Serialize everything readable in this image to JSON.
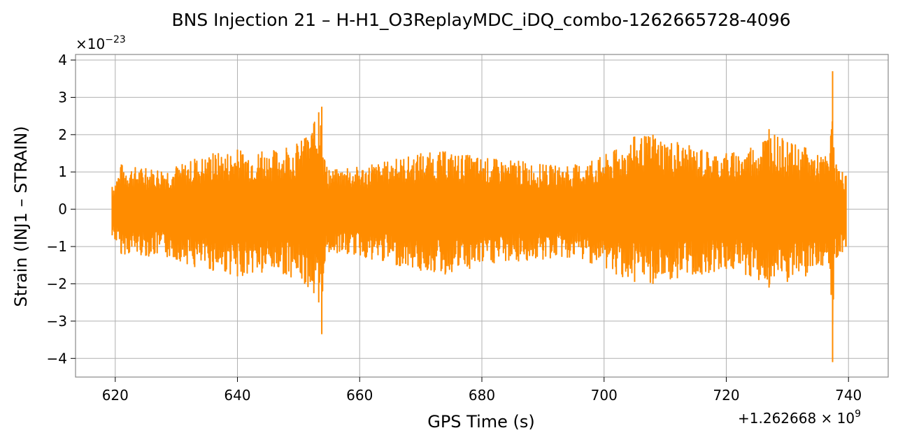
{
  "chart_data": {
    "type": "line",
    "title": "BNS Injection 21 – H-H1_O3ReplayMDC_iDQ_combo-1262665728-4096",
    "xlabel": "GPS Time (s)",
    "ylabel": "Strain (INJ1 – STRAIN)",
    "x_offset_label": "+1.262668 × 10",
    "x_offset_exp": "9",
    "y_multiplier_label": "×10",
    "y_multiplier_exp": "−23",
    "xlim": [
      613.5,
      746.5
    ],
    "ylim": [
      -4.5,
      4.15
    ],
    "xticks": [
      620,
      640,
      660,
      680,
      700,
      720,
      740
    ],
    "xtick_labels": [
      "620",
      "640",
      "660",
      "680",
      "700",
      "720",
      "740"
    ],
    "yticks": [
      -4,
      -3,
      -2,
      -1,
      0,
      1,
      2,
      3,
      4
    ],
    "ytick_labels": [
      "−4",
      "−3",
      "−2",
      "−1",
      "0",
      "1",
      "2",
      "3",
      "4"
    ],
    "grid": true,
    "series": [
      {
        "color": "#ff8c00",
        "x_range": [
          619.5,
          739.6
        ],
        "envelope": {
          "t": [
            619.5,
            621,
            625,
            630,
            633,
            636,
            640,
            644,
            648,
            651,
            652.5,
            653.3,
            653.8,
            654.3,
            655,
            658,
            662,
            666,
            670,
            674,
            678,
            682,
            686,
            690,
            694,
            698,
            702,
            705,
            708,
            712,
            716,
            720,
            724,
            727,
            730,
            733,
            735.5,
            737,
            737.4,
            737.7,
            738,
            739,
            739.6
          ],
          "upper": [
            0.6,
            1.2,
            1.1,
            1.15,
            1.35,
            1.5,
            1.6,
            1.55,
            1.65,
            1.9,
            2.3,
            2.6,
            2.75,
            1.3,
            1.05,
            1.1,
            1.2,
            1.35,
            1.5,
            1.55,
            1.45,
            1.35,
            1.3,
            1.2,
            1.15,
            1.3,
            1.6,
            1.95,
            2.0,
            1.8,
            1.6,
            1.5,
            1.65,
            2.15,
            1.8,
            1.65,
            1.4,
            1.5,
            3.7,
            1.1,
            1.2,
            1.0,
            0.9
          ],
          "lower": [
            -0.7,
            -1.2,
            -1.25,
            -1.35,
            -1.55,
            -1.65,
            -1.8,
            -1.7,
            -1.75,
            -2.0,
            -2.25,
            -2.5,
            -3.35,
            -1.4,
            -1.15,
            -1.2,
            -1.35,
            -1.5,
            -1.65,
            -1.75,
            -1.6,
            -1.45,
            -1.4,
            -1.35,
            -1.3,
            -1.45,
            -1.75,
            -1.95,
            -2.0,
            -1.85,
            -1.75,
            -1.6,
            -1.8,
            -2.1,
            -1.95,
            -1.8,
            -1.5,
            -1.6,
            -4.1,
            -1.2,
            -1.3,
            -1.15,
            -1.0
          ]
        }
      }
    ]
  }
}
